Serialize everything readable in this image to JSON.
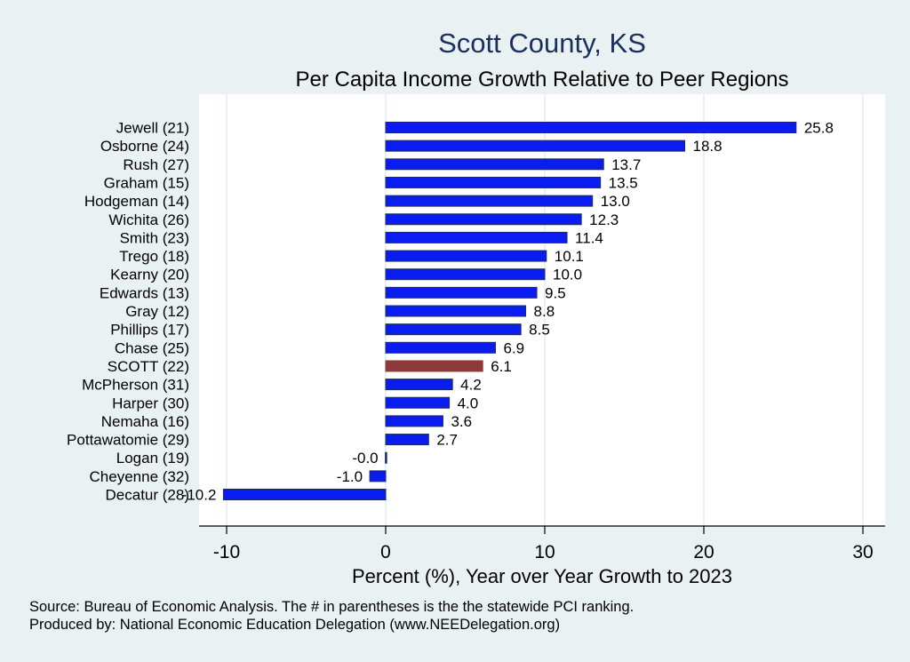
{
  "chart_data": {
    "type": "bar",
    "orientation": "horizontal",
    "title": "Scott County, KS",
    "subtitle": "Per Capita Income Growth Relative to Peer Regions",
    "xlabel": "Percent (%), Year over Year Growth to 2023",
    "ylabel": "",
    "xlim": [
      -11.8,
      31.5
    ],
    "xticks": [
      -10,
      0,
      10,
      20,
      30
    ],
    "xtick_labels": [
      "-10",
      "0",
      "10",
      "20",
      "30"
    ],
    "grid": true,
    "categories": [
      "Jewell (21)",
      "Osborne (24)",
      "Rush (27)",
      "Graham (15)",
      "Hodgeman (14)",
      "Wichita (26)",
      "Smith (23)",
      "Trego (18)",
      "Kearny (20)",
      "Edwards (13)",
      "Gray (12)",
      "Phillips (17)",
      "Chase (25)",
      "SCOTT (22)",
      "McPherson (31)",
      "Harper (30)",
      "Nemaha (16)",
      "Pottawatomie (29)",
      "Logan (19)",
      "Cheyenne (32)",
      "Decatur (28)"
    ],
    "values": [
      25.8,
      18.8,
      13.7,
      13.5,
      13.0,
      12.3,
      11.4,
      10.1,
      10.0,
      9.5,
      8.8,
      8.5,
      6.9,
      6.1,
      4.2,
      4.0,
      3.6,
      2.7,
      -0.02,
      -1.0,
      -10.2
    ],
    "value_labels": [
      "25.8",
      "18.8",
      "13.7",
      "13.5",
      "13.0",
      "12.3",
      "11.4",
      "10.1",
      "10.0",
      "9.5",
      "8.8",
      "8.5",
      "6.9",
      "6.1",
      "4.2",
      "4.0",
      "3.6",
      "2.7",
      "-0.0",
      "-1.0",
      "-10.2"
    ],
    "highlight_index": 13,
    "colors": {
      "bar": "#0a1cf0",
      "bar_edge": "#1a2f5c",
      "highlight": "#8f3a3a",
      "background": "#eaf1f3",
      "plot_background": "#ffffff",
      "grid": "#e4eef1",
      "title": "#1a2f5c"
    }
  },
  "notes": {
    "source": "Source: Bureau of Economic Analysis. The # in parentheses is the the statewide PCI ranking.",
    "produced_by": "Produced by: National Economic Education Delegation (www.NEEDelegation.org)"
  }
}
